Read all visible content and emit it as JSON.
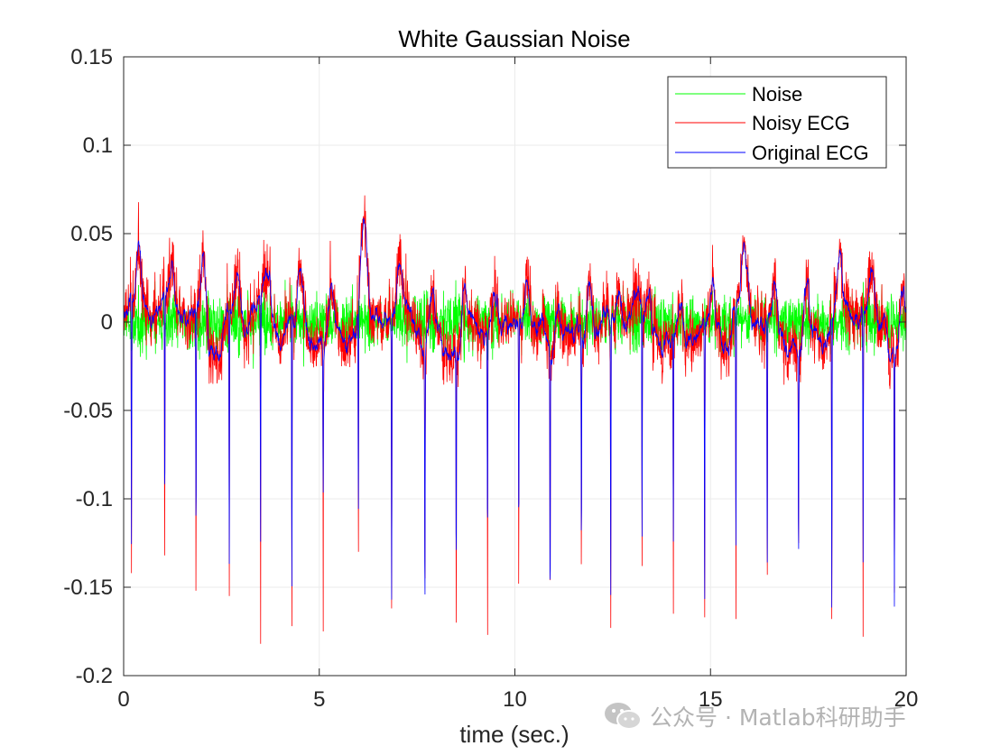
{
  "chart_data": {
    "type": "line",
    "title": "White Gaussian Noise",
    "xlabel": "time (sec.)",
    "ylabel": "",
    "xlim": [
      0,
      20
    ],
    "ylim": [
      -0.2,
      0.15
    ],
    "xticks": [
      0,
      5,
      10,
      15,
      20
    ],
    "xtick_labels": [
      "0",
      "5",
      "10",
      "15",
      "20"
    ],
    "yticks": [
      0.15,
      0.1,
      0.05,
      0,
      -0.05,
      -0.1,
      -0.15,
      -0.2
    ],
    "ytick_labels": [
      "0.15",
      "0.1",
      "0.05",
      "0",
      "-0.05",
      "-0.1",
      "-0.15",
      "-0.2"
    ],
    "grid": true,
    "legend_position": "top-right",
    "series": [
      {
        "name": "Noise",
        "color": "#00ff00",
        "noise_std": 0.02,
        "value_range": [
          -0.05,
          0.06
        ]
      },
      {
        "name": "Noisy ECG",
        "color": "#ff0000",
        "value_range": [
          -0.182,
          0.102
        ]
      },
      {
        "name": "Original ECG",
        "color": "#0000ff",
        "value_range": [
          -0.168,
          0.074
        ]
      }
    ],
    "r_peaks_time": [
      0.2,
      1.05,
      1.85,
      2.7,
      3.5,
      4.3,
      5.1,
      6.0,
      6.85,
      7.7,
      8.5,
      9.3,
      10.1,
      10.9,
      11.7,
      12.45,
      13.25,
      14.05,
      14.85,
      15.65,
      16.45,
      17.25,
      18.1,
      18.9,
      19.7
    ],
    "r_peaks_original": [
      -0.138,
      -0.118,
      -0.13,
      -0.145,
      -0.14,
      -0.16,
      -0.085,
      -0.125,
      -0.16,
      -0.145,
      -0.125,
      -0.12,
      -0.118,
      -0.145,
      -0.128,
      -0.16,
      -0.13,
      -0.12,
      -0.165,
      -0.14,
      -0.15,
      -0.12,
      -0.165,
      -0.14,
      -0.145
    ],
    "r_peaks_noisy": [
      -0.142,
      -0.132,
      -0.152,
      -0.155,
      -0.182,
      -0.172,
      -0.175,
      -0.13,
      -0.162,
      -0.145,
      -0.17,
      -0.177,
      -0.148,
      -0.146,
      -0.137,
      -0.173,
      -0.138,
      -0.165,
      -0.167,
      -0.168,
      -0.143,
      -0.125,
      -0.168,
      -0.178,
      -0.153
    ]
  },
  "watermark": {
    "text": "公众号 · Matlab科研助手",
    "icon": "wechat-icon"
  }
}
